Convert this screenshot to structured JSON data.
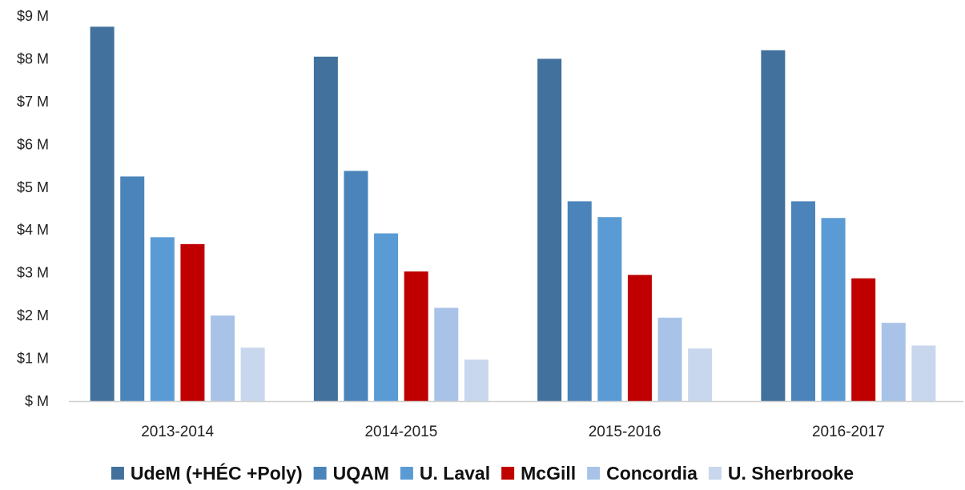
{
  "chart_data": {
    "type": "bar",
    "title": "",
    "xlabel": "",
    "ylabel": "",
    "ylim": [
      0,
      9
    ],
    "yticks": [
      {
        "value": 0,
        "label": "$ M"
      },
      {
        "value": 1,
        "label": "$1 M"
      },
      {
        "value": 2,
        "label": "$2 M"
      },
      {
        "value": 3,
        "label": "$3 M"
      },
      {
        "value": 4,
        "label": "$4 M"
      },
      {
        "value": 5,
        "label": "$5 M"
      },
      {
        "value": 6,
        "label": "$6 M"
      },
      {
        "value": 7,
        "label": "$7 M"
      },
      {
        "value": 8,
        "label": "$8 M"
      },
      {
        "value": 9,
        "label": "$9 M"
      }
    ],
    "grid": false,
    "legend_position": "bottom",
    "categories": [
      "2013-2014",
      "2014-2015",
      "2015-2016",
      "2016-2017"
    ],
    "series": [
      {
        "name": "UdeM (+HÉC +Poly)",
        "color": "#41719c",
        "values": [
          8.75,
          8.05,
          8.0,
          8.2
        ]
      },
      {
        "name": "UQAM",
        "color": "#4a84bb",
        "values": [
          5.25,
          5.38,
          4.67,
          4.67
        ]
      },
      {
        "name": "U. Laval",
        "color": "#5b9bd5",
        "values": [
          3.83,
          3.92,
          4.3,
          4.28
        ]
      },
      {
        "name": "McGill",
        "color": "#c00000",
        "values": [
          3.67,
          3.03,
          2.95,
          2.87
        ]
      },
      {
        "name": "Concordia",
        "color": "#a9c3e8",
        "values": [
          2.0,
          2.18,
          1.95,
          1.83
        ]
      },
      {
        "name": "U. Sherbrooke",
        "color": "#c8d7ee",
        "values": [
          1.25,
          0.97,
          1.23,
          1.3
        ]
      }
    ]
  }
}
